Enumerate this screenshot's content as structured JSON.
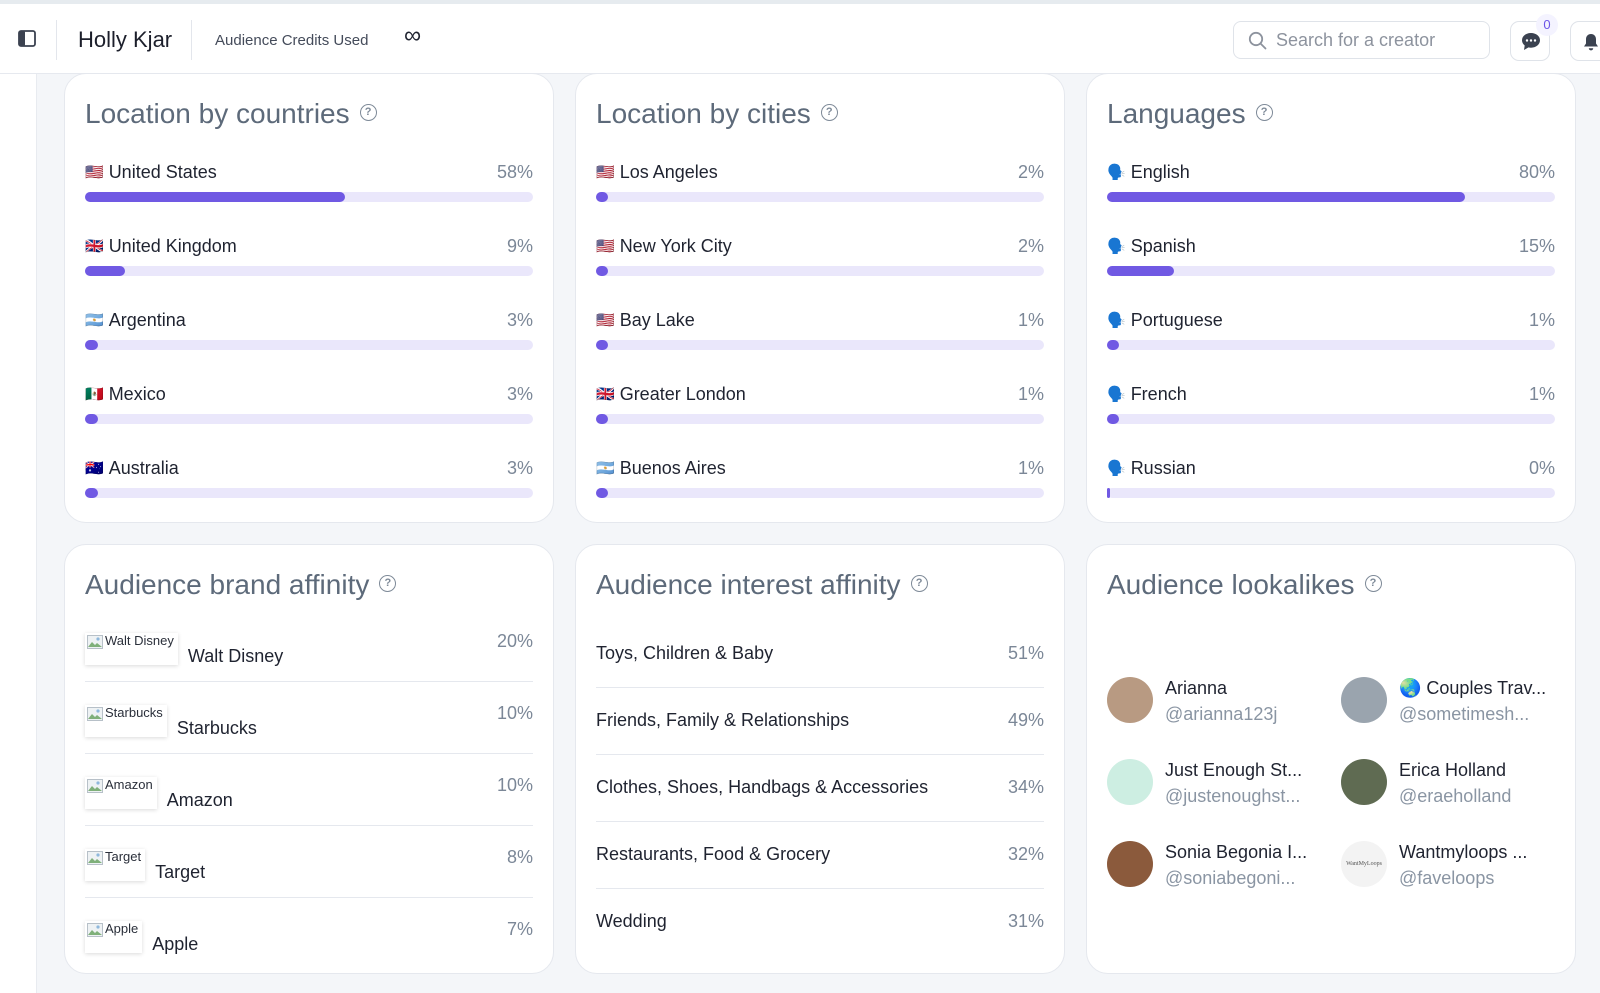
{
  "header": {
    "creator_name": "Holly Kjar",
    "credits_label": "Audience Credits Used",
    "credits_value": "∞",
    "search_placeholder": "Search for a creator",
    "chat_badge": "0"
  },
  "colors": {
    "accent": "#7059e3",
    "track": "#eae7fb",
    "muted": "#7b8797"
  },
  "countries": {
    "title": "Location by countries",
    "items": [
      {
        "flag": "🇺🇸",
        "name": "United States",
        "pct": "58%",
        "value": 58
      },
      {
        "flag": "🇬🇧",
        "name": "United Kingdom",
        "pct": "9%",
        "value": 9
      },
      {
        "flag": "🇦🇷",
        "name": "Argentina",
        "pct": "3%",
        "value": 3
      },
      {
        "flag": "🇲🇽",
        "name": "Mexico",
        "pct": "3%",
        "value": 3
      },
      {
        "flag": "🇦🇺",
        "name": "Australia",
        "pct": "3%",
        "value": 3
      }
    ]
  },
  "cities": {
    "title": "Location by cities",
    "items": [
      {
        "flag": "🇺🇸",
        "name": "Los Angeles",
        "pct": "2%",
        "value": 2
      },
      {
        "flag": "🇺🇸",
        "name": "New York City",
        "pct": "2%",
        "value": 2
      },
      {
        "flag": "🇺🇸",
        "name": "Bay Lake",
        "pct": "1%",
        "value": 1
      },
      {
        "flag": "🇬🇧",
        "name": "Greater London",
        "pct": "1%",
        "value": 1
      },
      {
        "flag": "🇦🇷",
        "name": "Buenos Aires",
        "pct": "1%",
        "value": 1
      }
    ]
  },
  "languages": {
    "title": "Languages",
    "items": [
      {
        "flag": "🗣️",
        "name": "English",
        "pct": "80%",
        "value": 80
      },
      {
        "flag": "🗣️",
        "name": "Spanish",
        "pct": "15%",
        "value": 15
      },
      {
        "flag": "🗣️",
        "name": "Portuguese",
        "pct": "1%",
        "value": 1
      },
      {
        "flag": "🗣️",
        "name": "French",
        "pct": "1%",
        "value": 1
      },
      {
        "flag": "🗣️",
        "name": "Russian",
        "pct": "0%",
        "value": 0
      }
    ]
  },
  "brands": {
    "title": "Audience brand affinity",
    "items": [
      {
        "logo_alt": "Walt Disney",
        "name": "Walt Disney",
        "pct": "20%"
      },
      {
        "logo_alt": "Starbucks",
        "name": "Starbucks",
        "pct": "10%"
      },
      {
        "logo_alt": "Amazon",
        "name": "Amazon",
        "pct": "10%"
      },
      {
        "logo_alt": "Target",
        "name": "Target",
        "pct": "8%"
      },
      {
        "logo_alt": "Apple",
        "name": "Apple",
        "pct": "7%"
      }
    ]
  },
  "interests": {
    "title": "Audience interest affinity",
    "items": [
      {
        "name": "Toys, Children & Baby",
        "pct": "51%"
      },
      {
        "name": "Friends, Family & Relationships",
        "pct": "49%"
      },
      {
        "name": "Clothes, Shoes, Handbags & Accessories",
        "pct": "34%"
      },
      {
        "name": "Restaurants, Food & Grocery",
        "pct": "32%"
      },
      {
        "name": "Wedding",
        "pct": "31%"
      }
    ]
  },
  "lookalikes": {
    "title": "Audience lookalikes",
    "items": [
      {
        "name": "Arianna",
        "handle": "@arianna123j",
        "avatar_color": "#b89a82"
      },
      {
        "name": "🌏 Couples Trav...",
        "handle": "@sometimesh...",
        "avatar_color": "#9aa4ae"
      },
      {
        "name": "Just Enough St...",
        "handle": "@justenoughst...",
        "avatar_color": "#cdeee2"
      },
      {
        "name": "Erica Holland",
        "handle": "@eraeholland",
        "avatar_color": "#5f6b52"
      },
      {
        "name": "Sonia Begonia I...",
        "handle": "@soniabegoni...",
        "avatar_color": "#8b5a3c"
      },
      {
        "name": "Wantmyloops ...",
        "handle": "@faveloops",
        "avatar_color": "#f3f3f3",
        "avatar_text": "WantMyLoops"
      }
    ]
  }
}
